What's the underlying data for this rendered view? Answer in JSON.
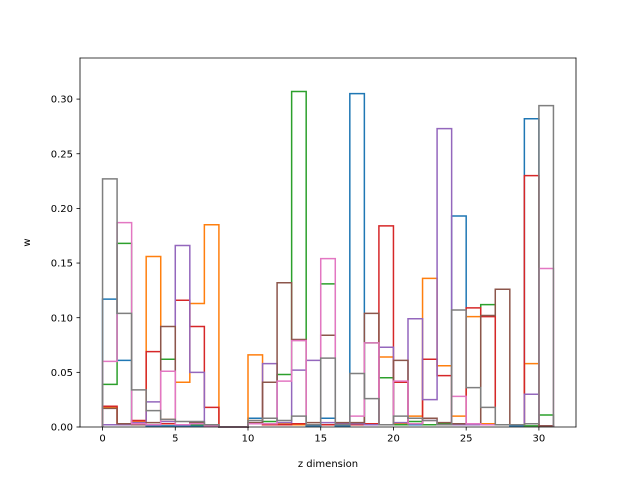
{
  "chart_data": {
    "type": "step",
    "title": "",
    "xlabel": "z dimension",
    "ylabel": "w",
    "xlim": [
      -1.55,
      32.55
    ],
    "ylim": [
      0,
      0.3376
    ],
    "xticks": [
      0,
      5,
      10,
      15,
      20,
      25,
      30
    ],
    "xtick_labels": [
      "0",
      "5",
      "10",
      "15",
      "20",
      "25",
      "30"
    ],
    "yticks": [
      0,
      0.05,
      0.1,
      0.15,
      0.2,
      0.25,
      0.3
    ],
    "ytick_labels": [
      "0.00",
      "0.05",
      "0.10",
      "0.15",
      "0.20",
      "0.25",
      "0.30"
    ],
    "grid": false,
    "legend": false,
    "x_edges": [
      0,
      1,
      2,
      3,
      4,
      5,
      6,
      7,
      8,
      9,
      10,
      11,
      12,
      13,
      14,
      15,
      16,
      17,
      18,
      19,
      20,
      21,
      22,
      23,
      24,
      25,
      26,
      27,
      28,
      29,
      30,
      31
    ],
    "series": [
      {
        "color": "#1f77b4",
        "values": [
          0.117,
          0.061,
          0.002,
          0.001,
          0.001,
          0.001,
          0.001,
          0.001,
          0,
          0,
          0.008,
          0.003,
          0.003,
          0.002,
          0.001,
          0.008,
          0.001,
          0.305,
          0.003,
          0.002,
          0.002,
          0.002,
          0.002,
          0.002,
          0.193,
          0.002,
          0.002,
          0.002,
          0.001,
          0.282,
          0.001
        ]
      },
      {
        "color": "#ff7f0e",
        "values": [
          0.018,
          0.002,
          0.005,
          0.156,
          0.007,
          0.041,
          0.113,
          0.185,
          0,
          0,
          0.066,
          0.002,
          0.003,
          0.002,
          0.002,
          0.002,
          0.002,
          0.002,
          0.003,
          0.064,
          0.003,
          0.01,
          0.136,
          0.056,
          0.01,
          0.101,
          0.003,
          0.002,
          0.002,
          0.058,
          0.001
        ]
      },
      {
        "color": "#2ca02c",
        "values": [
          0.039,
          0.168,
          0.002,
          0.002,
          0.062,
          0.002,
          0.002,
          0.001,
          0,
          0,
          0.003,
          0.005,
          0.048,
          0.307,
          0.002,
          0.131,
          0.002,
          0.002,
          0.077,
          0.045,
          0.002,
          0.005,
          0.002,
          0.003,
          0.002,
          0.002,
          0.112,
          0.002,
          0.002,
          0.001,
          0.011
        ]
      },
      {
        "color": "#d62728",
        "values": [
          0.019,
          0.002,
          0.006,
          0.069,
          0.003,
          0.116,
          0.092,
          0.018,
          0,
          0,
          0.003,
          0.002,
          0.002,
          0.003,
          0.002,
          0.002,
          0.003,
          0.002,
          0.003,
          0.184,
          0.041,
          0.003,
          0.062,
          0.047,
          0.002,
          0.109,
          0.101,
          0.002,
          0.002,
          0.23,
          0.001
        ]
      },
      {
        "color": "#9467bd",
        "values": [
          0.002,
          0.002,
          0.004,
          0.023,
          0.005,
          0.166,
          0.05,
          0.002,
          0,
          0,
          0.003,
          0.058,
          0.004,
          0.052,
          0.061,
          0.004,
          0.003,
          0.003,
          0.002,
          0.073,
          0.004,
          0.099,
          0.025,
          0.273,
          0.002,
          0.002,
          0.002,
          0.002,
          0.002,
          0.03,
          0.001
        ]
      },
      {
        "color": "#8c564b",
        "values": [
          0.017,
          0.003,
          0.002,
          0.004,
          0.092,
          0.002,
          0.004,
          0.001,
          0,
          0,
          0.004,
          0.041,
          0.132,
          0.08,
          0.004,
          0.084,
          0.004,
          0.004,
          0.104,
          0.002,
          0.061,
          0.003,
          0.008,
          0.004,
          0.003,
          0.003,
          0.102,
          0.126,
          0.002,
          0.003,
          0.001
        ]
      },
      {
        "color": "#e377c2",
        "values": [
          0.06,
          0.187,
          0.003,
          0.002,
          0.051,
          0.002,
          0.003,
          0.001,
          0,
          0,
          0.003,
          0.003,
          0.042,
          0.079,
          0.002,
          0.154,
          0.002,
          0.01,
          0.077,
          0.002,
          0.042,
          0.003,
          0.006,
          0.002,
          0.028,
          0.003,
          0.002,
          0.002,
          0.002,
          0.003,
          0.145
        ]
      },
      {
        "color": "#7f7f7f",
        "values": [
          0.227,
          0.104,
          0.034,
          0.015,
          0.007,
          0.005,
          0.005,
          0.002,
          0,
          0,
          0.006,
          0.008,
          0.006,
          0.01,
          0.002,
          0.063,
          0.002,
          0.049,
          0.026,
          0.002,
          0.01,
          0.008,
          0.006,
          0.002,
          0.107,
          0.036,
          0.018,
          0.002,
          0.002,
          0.003,
          0.294
        ]
      }
    ]
  }
}
